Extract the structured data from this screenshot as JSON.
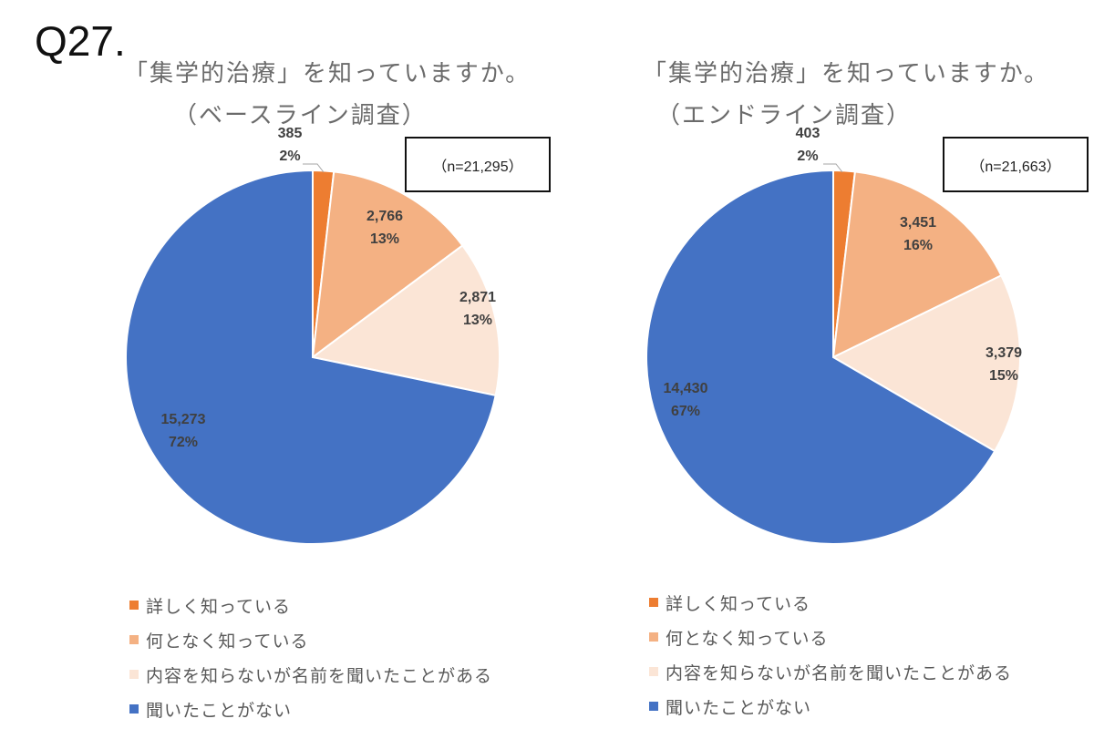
{
  "page": {
    "question_label": "Q27."
  },
  "colors": {
    "detail": "#ED7D31",
    "somewhat": "#F4B183",
    "heard_name": "#FBE5D6",
    "never": "#4472C4"
  },
  "legend": [
    {
      "label": "詳しく知っている",
      "color": "#ED7D31"
    },
    {
      "label": "何となく知っている",
      "color": "#F4B183"
    },
    {
      "label": "内容を知らないが名前を聞いたことがある",
      "color": "#FBE5D6"
    },
    {
      "label": "聞いたことがない",
      "color": "#4472C4"
    }
  ],
  "charts": [
    {
      "title": "「集学的治療」を知っていますか。",
      "subtitle": "（ベースライン調査）",
      "n_label": "（n=21,295）",
      "slices": [
        {
          "value_label": "385",
          "pct_label": "2%"
        },
        {
          "value_label": "2,766",
          "pct_label": "13%"
        },
        {
          "value_label": "2,871",
          "pct_label": "13%"
        },
        {
          "value_label": "15,273",
          "pct_label": "72%"
        }
      ]
    },
    {
      "title": "「集学的治療」を知っていますか。",
      "subtitle": "（エンドライン調査）",
      "n_label": "（n=21,663）",
      "slices": [
        {
          "value_label": "403",
          "pct_label": "2%"
        },
        {
          "value_label": "3,451",
          "pct_label": "16%"
        },
        {
          "value_label": "3,379",
          "pct_label": "15%"
        },
        {
          "value_label": "14,430",
          "pct_label": "67%"
        }
      ]
    }
  ],
  "chart_data": [
    {
      "type": "pie",
      "title": "「集学的治療」を知っていますか。（ベースライン調査）",
      "n": 21295,
      "categories": [
        "詳しく知っている",
        "何となく知っている",
        "内容を知らないが名前を聞いたことがある",
        "聞いたことがない"
      ],
      "values": [
        385,
        2766,
        2871,
        15273
      ],
      "percentages": [
        2,
        13,
        13,
        72
      ],
      "colors": [
        "#ED7D31",
        "#F4B183",
        "#FBE5D6",
        "#4472C4"
      ],
      "legend_position": "bottom",
      "start_angle": "12 o'clock, clockwise"
    },
    {
      "type": "pie",
      "title": "「集学的治療」を知っていますか。（エンドライン調査）",
      "n": 21663,
      "categories": [
        "詳しく知っている",
        "何となく知っている",
        "内容を知らないが名前を聞いたことがある",
        "聞いたことがない"
      ],
      "values": [
        403,
        3451,
        3379,
        14430
      ],
      "percentages": [
        2,
        16,
        15,
        67
      ],
      "colors": [
        "#ED7D31",
        "#F4B183",
        "#FBE5D6",
        "#4472C4"
      ],
      "legend_position": "bottom",
      "start_angle": "12 o'clock, clockwise"
    }
  ]
}
